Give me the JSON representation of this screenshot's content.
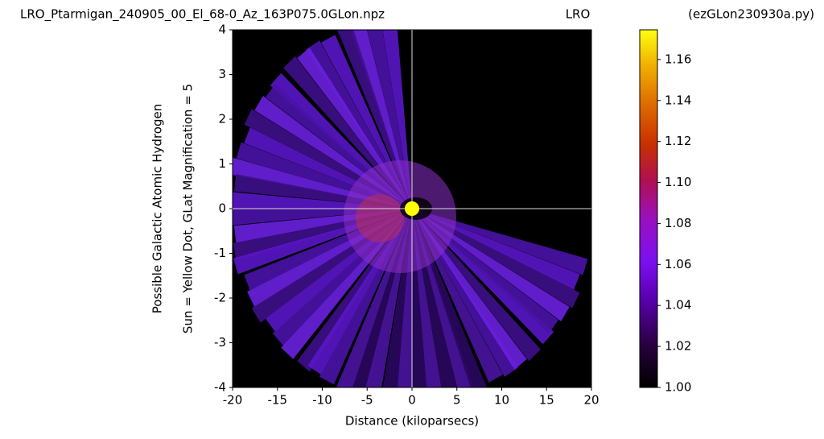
{
  "chart_data": {
    "type": "heatmap",
    "title": "LRO_Ptarmigan_240905_00_El_68-0_Az_163P075.0GLon.npz",
    "station": "LRO",
    "script_name": "(ezGLon230930a.py)",
    "x_label": "Distance (kiloparsecs)",
    "y_label": "Possible Galactic Atomic Hydrogen",
    "y_label_2": "Sun = Yellow Dot, GLat Magnification = 5",
    "xlim": [
      -20,
      20
    ],
    "ylim": [
      -4,
      4
    ],
    "xticks": [
      -20,
      -15,
      -10,
      -5,
      0,
      5,
      10,
      15,
      20
    ],
    "yticks": [
      -4,
      -3,
      -2,
      -1,
      0,
      1,
      2,
      3,
      4
    ],
    "sun": {
      "x": 0,
      "y": 0,
      "color": "#ffff00"
    },
    "clim": [
      1.0,
      1.1745
    ],
    "cticks": [
      {
        "value": 1.0,
        "label": "1.00"
      },
      {
        "value": 1.02,
        "label": "1.02"
      },
      {
        "value": 1.04,
        "label": "1.04"
      },
      {
        "value": 1.06,
        "label": "1.06"
      },
      {
        "value": 1.08,
        "label": "1.08"
      },
      {
        "value": 1.1,
        "label": "1.10"
      },
      {
        "value": 1.12,
        "label": "1.12"
      },
      {
        "value": 1.14,
        "label": "1.14"
      },
      {
        "value": 1.16,
        "label": "1.16"
      }
    ]
  }
}
